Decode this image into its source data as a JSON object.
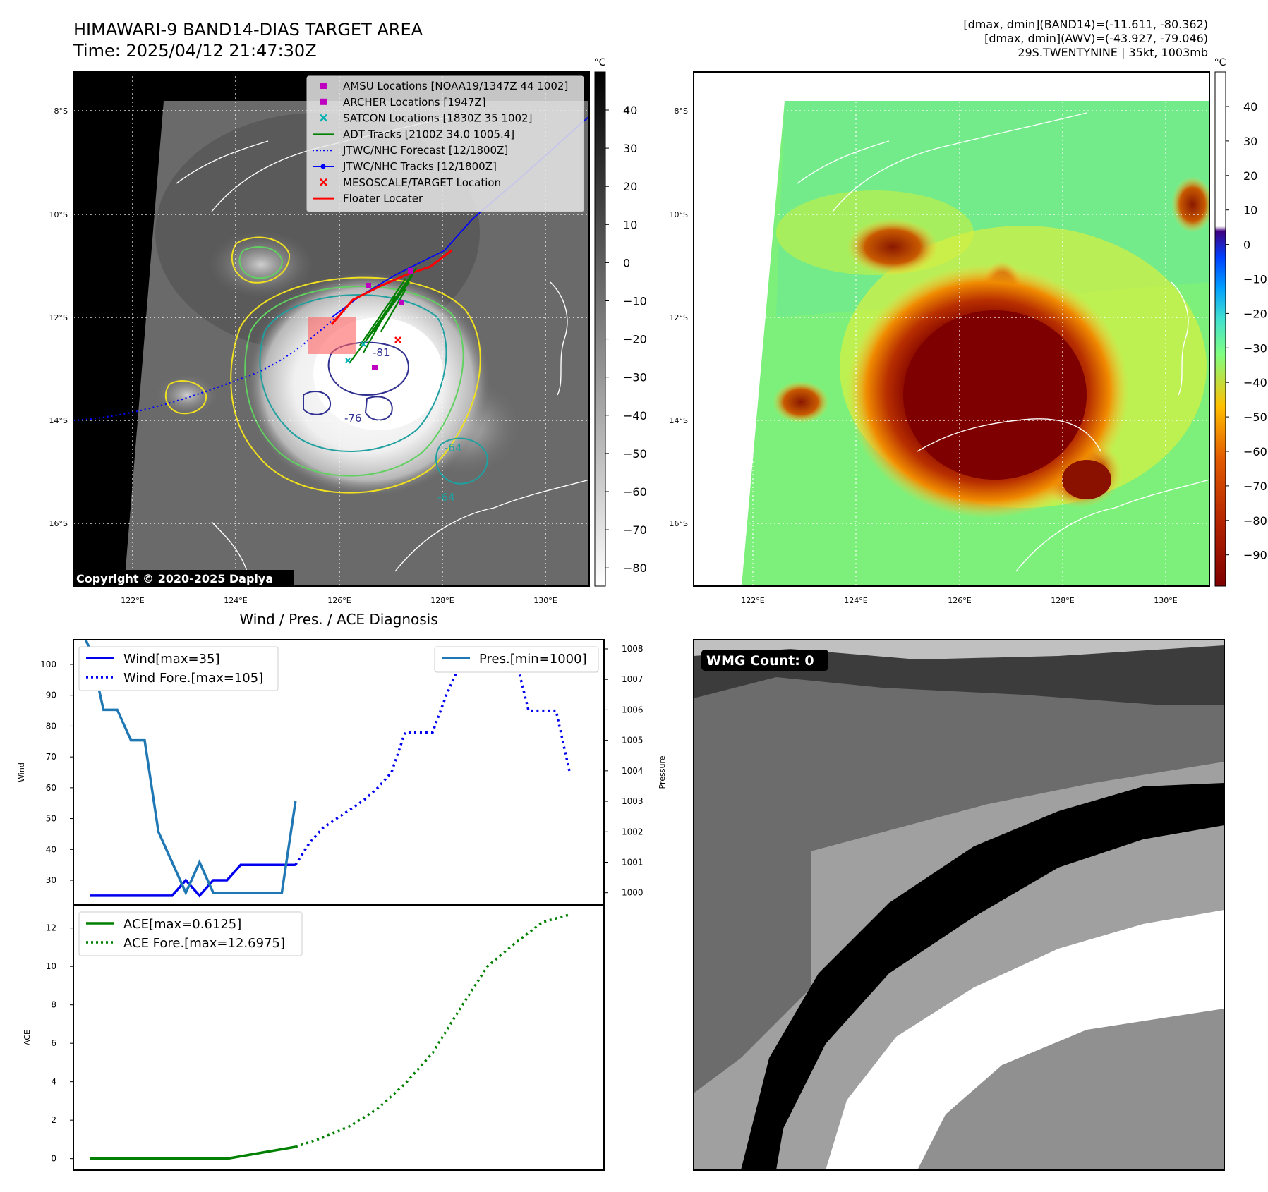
{
  "header": {
    "title": "HIMAWARI-9 BAND14-DIAS TARGET AREA",
    "time": "Time: 2025/04/12 21:47:30Z",
    "info_lines": [
      "[dmax, dmin](BAND14)=(-11.611, -80.362)",
      "[dmax, dmin](AWV)=(-43.927, -79.046)",
      "29S.TWENTYNINE | 35kt, 1003mb"
    ]
  },
  "maps": {
    "lat_labels": [
      "8°S",
      "10°S",
      "12°S",
      "14°S",
      "16°S"
    ],
    "lon_labels": [
      "122°E",
      "124°E",
      "126°E",
      "128°E",
      "130°E"
    ],
    "copyright": "Copyright © 2020-2025 Dapiya",
    "contour_labels": [
      "-81",
      "-76",
      "-64",
      "-64"
    ],
    "legend": [
      {
        "label": "AMSU Locations [NOAA19/1347Z 44 1002]",
        "color": "#c000c0",
        "marker": "square"
      },
      {
        "label": "ARCHER Locations [1947Z]",
        "color": "#c000c0",
        "marker": "square"
      },
      {
        "label": "SATCON Locations [1830Z 35 1002]",
        "color": "#00b0b0",
        "marker": "x"
      },
      {
        "label": "ADT Tracks [2100Z 34.0 1005.4]",
        "color": "#008000",
        "marker": "line"
      },
      {
        "label": "JTWC/NHC Forecast [12/1800Z]",
        "color": "#0000ff",
        "marker": "dotted"
      },
      {
        "label": "JTWC/NHC Tracks [12/1800Z]",
        "color": "#0000ff",
        "marker": "line-dot"
      },
      {
        "label": "MESOSCALE/TARGET Location",
        "color": "#ff0000",
        "marker": "x"
      },
      {
        "label": "Floater Locater",
        "color": "#ff0000",
        "marker": "line"
      }
    ],
    "colorbar_left": {
      "unit": "°C",
      "ticks": [
        "40",
        "30",
        "20",
        "10",
        "0",
        "−10",
        "−20",
        "−30",
        "−40",
        "−50",
        "−60",
        "−70",
        "−80"
      ]
    },
    "colorbar_right": {
      "unit": "°C",
      "ticks": [
        "40",
        "30",
        "20",
        "10",
        "0",
        "−10",
        "−20",
        "−30",
        "−40",
        "−50",
        "−60",
        "−70",
        "−80",
        "−90"
      ]
    }
  },
  "wmg": {
    "label": "WMG Count: 0"
  },
  "chart_data": [
    {
      "type": "line",
      "title": "Wind / Pres. / ACE Diagnosis",
      "ylabel": "Wind",
      "ylabel_right": "Pressure",
      "ylim": [
        22,
        108
      ],
      "ylim_right": [
        999.6,
        1008.3
      ],
      "yticks": [
        30,
        40,
        50,
        60,
        70,
        80,
        90,
        100
      ],
      "yticks_right": [
        1000,
        1001,
        1002,
        1003,
        1004,
        1005,
        1006,
        1007,
        1008
      ],
      "legend_left": [
        "Wind[max=35]",
        "Wind Fore.[max=105]"
      ],
      "legend_right": [
        "Pres.[min=1000]"
      ],
      "series": [
        {
          "name": "Wind[max=35]",
          "color": "#0000ee",
          "style": "solid",
          "axis": "left",
          "x": [
            0,
            1,
            2,
            3,
            4,
            5,
            6,
            7,
            8,
            9,
            10,
            11,
            12,
            13,
            14,
            15
          ],
          "y": [
            25,
            25,
            25,
            25,
            25,
            25,
            25,
            30,
            25,
            30,
            30,
            35,
            35,
            35,
            35,
            35
          ]
        },
        {
          "name": "Wind Fore.[max=105]",
          "color": "#0000ee",
          "style": "dotted",
          "axis": "left",
          "x": [
            15,
            16,
            17,
            18,
            19,
            20,
            21,
            22,
            23,
            24,
            25,
            26,
            27,
            28,
            29,
            30,
            31,
            32,
            33,
            34,
            35
          ],
          "y": [
            35,
            42,
            47,
            50,
            53,
            56,
            60,
            65,
            78,
            78,
            78,
            90,
            100,
            103,
            100,
            103,
            103,
            85,
            85,
            85,
            65
          ]
        },
        {
          "name": "Pres.[min=1000]",
          "color": "#1f77b4",
          "style": "solid",
          "axis": "right",
          "x": [
            -1,
            0,
            1,
            2,
            3,
            4,
            5,
            6,
            7,
            8,
            9,
            10,
            11,
            12,
            13,
            14,
            15
          ],
          "y": [
            1009,
            1008,
            1006,
            1006,
            1005,
            1005,
            1002,
            1001,
            1000,
            1001,
            1000,
            1000,
            1000,
            1000,
            1000,
            1000,
            1003
          ]
        }
      ]
    },
    {
      "type": "line",
      "ylabel": "ACE",
      "ylim": [
        -0.6,
        13.2
      ],
      "yticks": [
        0,
        2,
        4,
        6,
        8,
        10,
        12
      ],
      "legend": [
        "ACE[max=0.6125]",
        "ACE Fore.[max=12.6975]"
      ],
      "series": [
        {
          "name": "ACE[max=0.6125]",
          "color": "#008000",
          "style": "solid",
          "x": [
            0,
            5,
            10,
            15
          ],
          "y": [
            0,
            0,
            0,
            0.6125
          ]
        },
        {
          "name": "ACE Fore.[max=12.6975]",
          "color": "#008000",
          "style": "dotted",
          "x": [
            15,
            17,
            19,
            21,
            23,
            25,
            27,
            29,
            31,
            33,
            35
          ],
          "y": [
            0.6125,
            1.1,
            1.7,
            2.6,
            3.9,
            5.5,
            7.8,
            10.0,
            11.2,
            12.3,
            12.6975
          ]
        }
      ]
    }
  ]
}
